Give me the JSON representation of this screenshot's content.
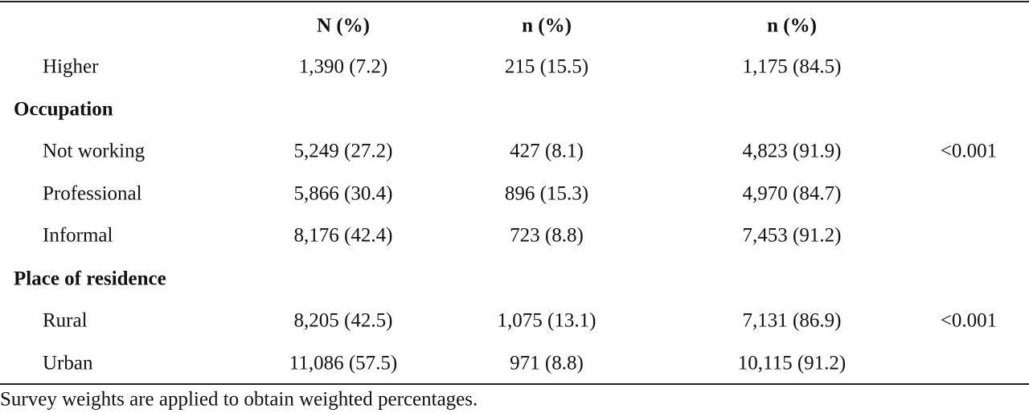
{
  "table": {
    "header": [
      "N (%)",
      "n (%)",
      "n (%)"
    ],
    "rows": [
      {
        "label": "Higher",
        "cells": [
          "1,390 (7.2)",
          "215 (15.5)",
          "1,175 (84.5)"
        ]
      },
      {
        "section": "Occupation"
      },
      {
        "label": "Not working",
        "cells": [
          "5,249 (27.2)",
          "427 (8.1)",
          "4,823 (91.9)"
        ],
        "p": "<0.001"
      },
      {
        "label": "Professional",
        "cells": [
          "5,866 (30.4)",
          "896 (15.3)",
          "4,970 (84.7)"
        ]
      },
      {
        "label": "Informal",
        "cells": [
          "8,176 (42.4)",
          "723 (8.8)",
          "7,453 (91.2)"
        ]
      },
      {
        "section": "Place of residence"
      },
      {
        "label": "Rural",
        "cells": [
          "8,205 (42.5)",
          "1,075 (13.1)",
          "7,131 (86.9)"
        ],
        "p": "<0.001"
      },
      {
        "label": "Urban",
        "cells": [
          "11,086 (57.5)",
          "971 (8.8)",
          "10,115 (91.2)"
        ]
      }
    ],
    "footnote": "Survey weights are applied to obtain weighted percentages."
  }
}
